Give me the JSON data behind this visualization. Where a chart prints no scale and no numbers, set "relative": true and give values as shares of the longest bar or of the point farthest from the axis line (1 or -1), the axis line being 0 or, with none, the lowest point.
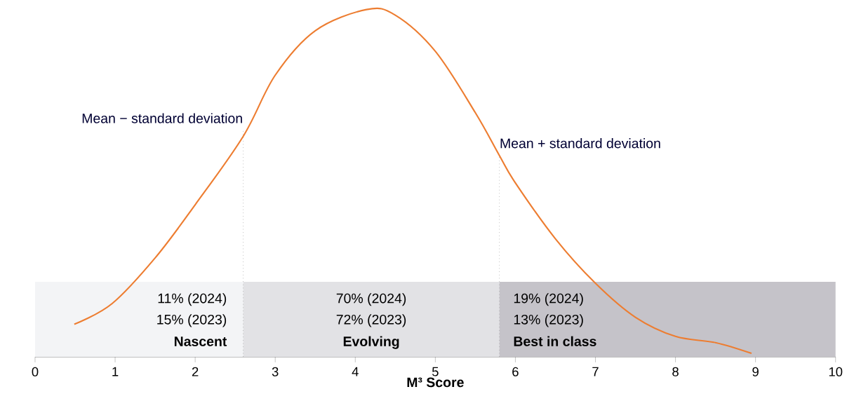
{
  "chart_data": {
    "type": "line",
    "relative": true,
    "xlabel": "M³ Score",
    "xlim": [
      0,
      10
    ],
    "xticks": [
      0,
      1,
      2,
      3,
      4,
      5,
      6,
      7,
      8,
      9,
      10
    ],
    "grid": false,
    "marker": "none",
    "line_style": "solid",
    "series": [
      {
        "color": "#ed7d31",
        "x": [
          0.49,
          0.96,
          1.5,
          2.0,
          2.6,
          3.0,
          3.5,
          4.14,
          4.5,
          5.0,
          5.5,
          5.8,
          6.0,
          6.5,
          7.0,
          7.5,
          8.0,
          8.5,
          8.95
        ],
        "values": [
          0.094,
          0.153,
          0.285,
          0.438,
          0.635,
          0.811,
          0.939,
          1,
          0.984,
          0.88,
          0.703,
          0.58,
          0.501,
          0.34,
          0.212,
          0.114,
          0.059,
          0.041,
          0.01
        ]
      }
    ],
    "bands": [
      {
        "axis": "x",
        "from": 0,
        "to": 2.6,
        "label": "Nascent",
        "color": "#f3f4f6"
      },
      {
        "axis": "x",
        "from": 2.6,
        "to": 5.8,
        "label": "Evolving",
        "color": "#e2e2e5"
      },
      {
        "axis": "x",
        "from": 5.8,
        "to": 10,
        "label": "Best in class",
        "color": "#c5c3c9"
      }
    ],
    "ref_lines": [
      {
        "axis": "x",
        "value": 2.6,
        "label": "Mean − standard deviation",
        "color": "#999999",
        "line_style": "dotted"
      },
      {
        "axis": "x",
        "value": 5.8,
        "label": "Mean + standard deviation",
        "color": "#999999",
        "line_style": "dotted"
      }
    ],
    "annotations": [
      "11% (2024)",
      "15% (2023)",
      "70% (2024)",
      "72% (2023)",
      "19% (2024)",
      "13% (2023)"
    ]
  }
}
